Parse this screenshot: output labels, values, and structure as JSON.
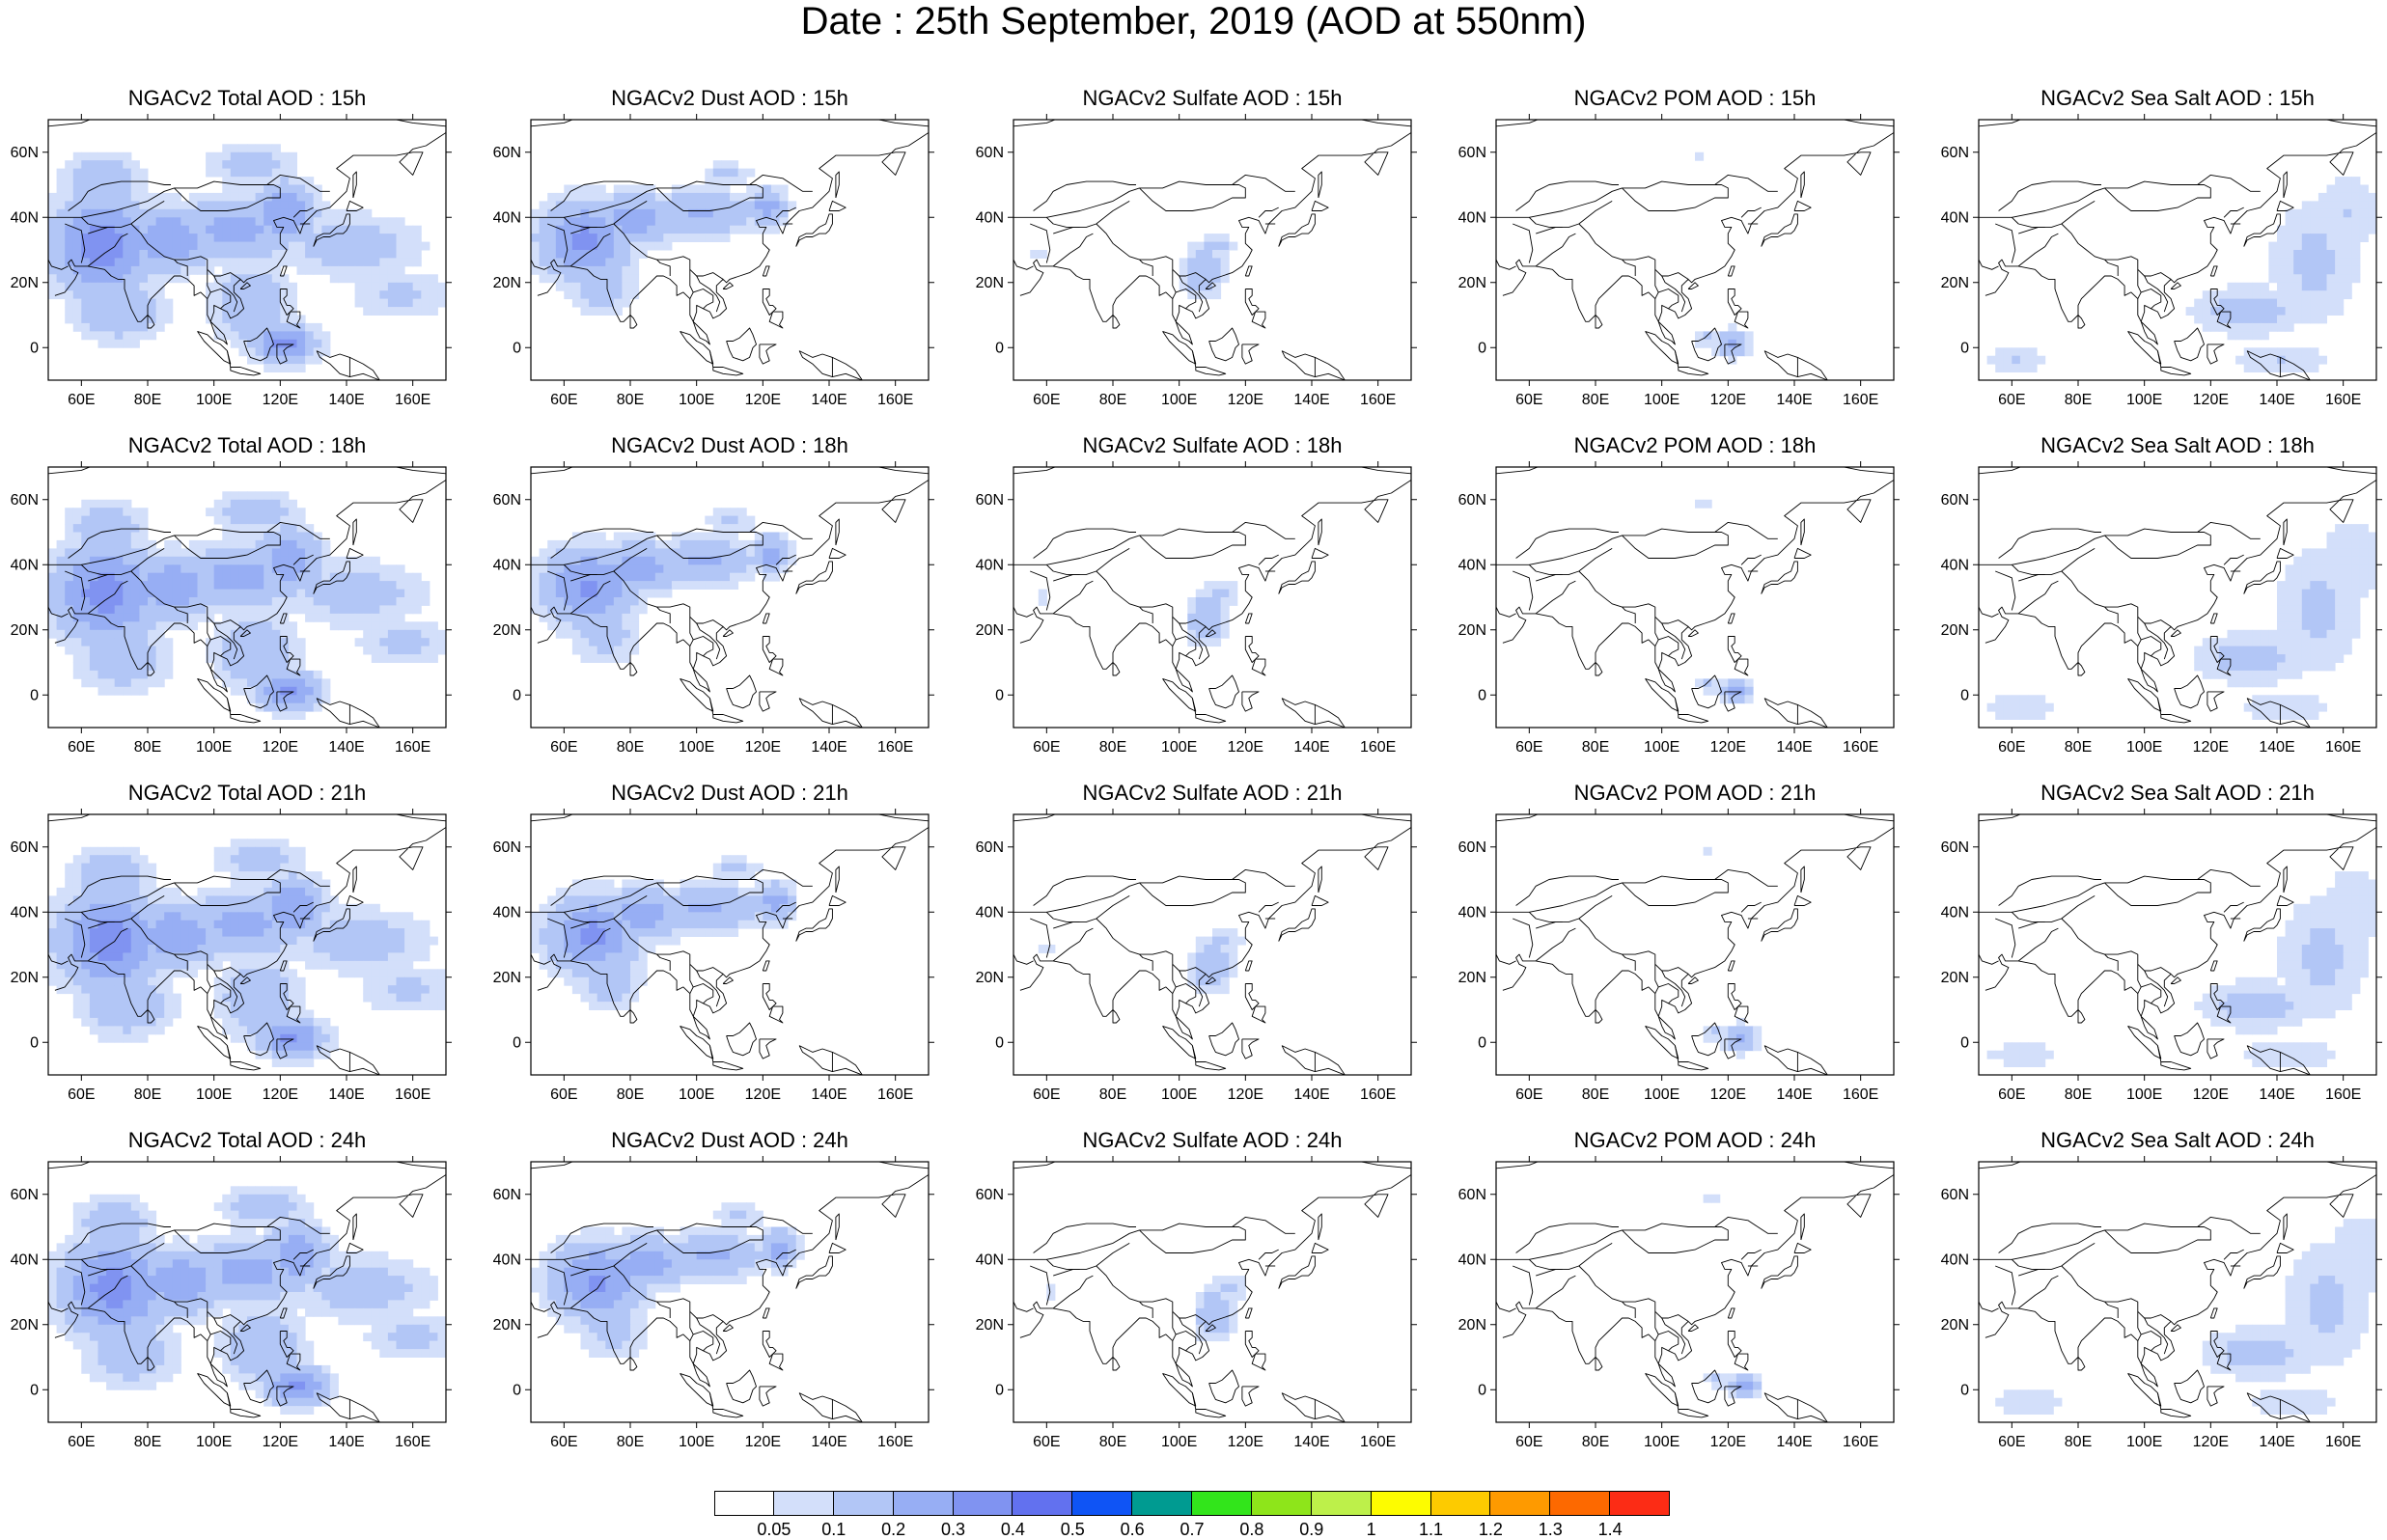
{
  "title": "Date : 25th September, 2019 (AOD at 550nm)",
  "map": {
    "lon_range": [
      50,
      170
    ],
    "lat_range": [
      -10,
      70
    ],
    "lon_ticks": [
      60,
      80,
      100,
      120,
      140,
      160
    ],
    "lon_tick_labels": [
      "60E",
      "80E",
      "100E",
      "120E",
      "140E",
      "160E"
    ],
    "lat_ticks": [
      0,
      20,
      40,
      60
    ],
    "lat_tick_labels": [
      "0",
      "20N",
      "40N",
      "60N"
    ]
  },
  "panels": [
    {
      "row": 0,
      "col": 0,
      "title": "NGACv2 Total AOD : 15h",
      "species": "total",
      "hour": 15
    },
    {
      "row": 0,
      "col": 1,
      "title": "NGACv2 Dust AOD : 15h",
      "species": "dust",
      "hour": 15
    },
    {
      "row": 0,
      "col": 2,
      "title": "NGACv2 Sulfate AOD : 15h",
      "species": "sulfate",
      "hour": 15
    },
    {
      "row": 0,
      "col": 3,
      "title": "NGACv2 POM AOD : 15h",
      "species": "pom",
      "hour": 15
    },
    {
      "row": 0,
      "col": 4,
      "title": "NGACv2 Sea Salt AOD : 15h",
      "species": "seasalt",
      "hour": 15
    },
    {
      "row": 1,
      "col": 0,
      "title": "NGACv2 Total AOD : 18h",
      "species": "total",
      "hour": 18
    },
    {
      "row": 1,
      "col": 1,
      "title": "NGACv2 Dust AOD : 18h",
      "species": "dust",
      "hour": 18
    },
    {
      "row": 1,
      "col": 2,
      "title": "NGACv2 Sulfate AOD : 18h",
      "species": "sulfate",
      "hour": 18
    },
    {
      "row": 1,
      "col": 3,
      "title": "NGACv2 POM AOD : 18h",
      "species": "pom",
      "hour": 18
    },
    {
      "row": 1,
      "col": 4,
      "title": "NGACv2 Sea Salt AOD : 18h",
      "species": "seasalt",
      "hour": 18
    },
    {
      "row": 2,
      "col": 0,
      "title": "NGACv2 Total AOD : 21h",
      "species": "total",
      "hour": 21
    },
    {
      "row": 2,
      "col": 1,
      "title": "NGACv2 Dust AOD : 21h",
      "species": "dust",
      "hour": 21
    },
    {
      "row": 2,
      "col": 2,
      "title": "NGACv2 Sulfate AOD : 21h",
      "species": "sulfate",
      "hour": 21
    },
    {
      "row": 2,
      "col": 3,
      "title": "NGACv2 POM AOD : 21h",
      "species": "pom",
      "hour": 21
    },
    {
      "row": 2,
      "col": 4,
      "title": "NGACv2 Sea Salt AOD : 21h",
      "species": "seasalt",
      "hour": 21
    },
    {
      "row": 3,
      "col": 0,
      "title": "NGACv2 Total AOD : 24h",
      "species": "total",
      "hour": 24
    },
    {
      "row": 3,
      "col": 1,
      "title": "NGACv2 Dust AOD : 24h",
      "species": "dust",
      "hour": 24
    },
    {
      "row": 3,
      "col": 2,
      "title": "NGACv2 Sulfate AOD : 24h",
      "species": "sulfate",
      "hour": 24
    },
    {
      "row": 3,
      "col": 3,
      "title": "NGACv2 POM AOD : 24h",
      "species": "pom",
      "hour": 24
    },
    {
      "row": 3,
      "col": 4,
      "title": "NGACv2 Sea Salt  AOD : 24h",
      "species": "seasalt",
      "hour": 24
    }
  ],
  "colorbar": {
    "labels": [
      "0.05",
      "0.1",
      "0.2",
      "0.3",
      "0.4",
      "0.5",
      "0.6",
      "0.7",
      "0.8",
      "0.9",
      "1",
      "1.1",
      "1.2",
      "1.3",
      "1.4"
    ],
    "colors": [
      "#ffffff",
      "#d3dffa",
      "#b2c6f6",
      "#97aef4",
      "#8093f1",
      "#6271ef",
      "#0f54f5",
      "#009b91",
      "#32e51b",
      "#8ee51a",
      "#bdf04a",
      "#fdfc00",
      "#fdcb00",
      "#fe9a00",
      "#fd6900",
      "#fc2c15"
    ]
  }
}
